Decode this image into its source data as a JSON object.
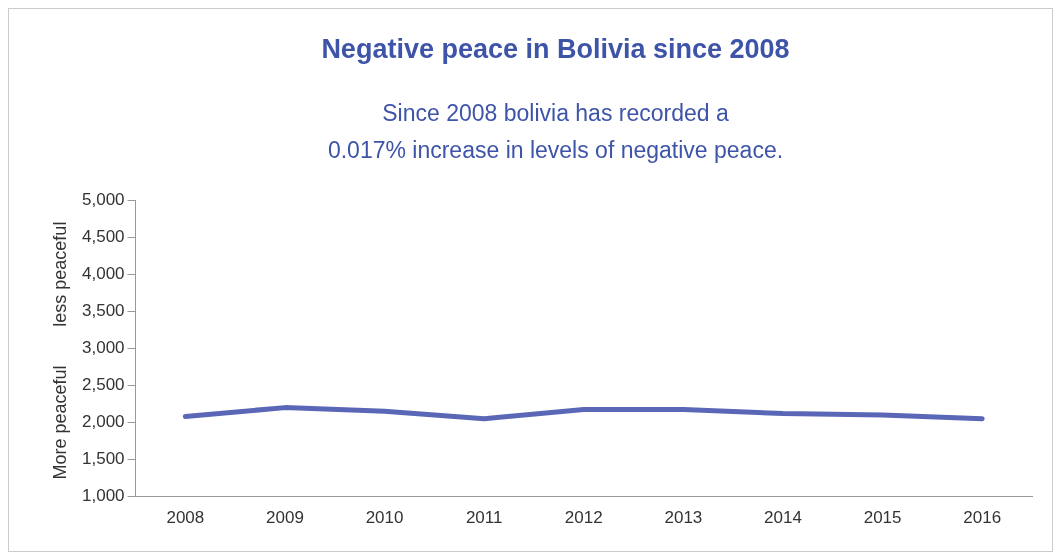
{
  "chart_data": {
    "type": "line",
    "title": "Negative peace in Bolivia since 2008",
    "subtitle": "Since 2008 bolivia has recorded a\n0.017% increase in levels of negative peace.",
    "ylabel": "More peaceful",
    "annotations": [
      "less peaceful"
    ],
    "categories": [
      "2008",
      "2009",
      "2010",
      "2011",
      "2012",
      "2013",
      "2014",
      "2015",
      "2016"
    ],
    "series": [
      {
        "color": "#5a67b6",
        "values": [
          2080,
          2200,
          2150,
          2050,
          2175,
          2175,
          2120,
          2100,
          2050
        ]
      }
    ],
    "ylim": [
      1000,
      5000
    ],
    "yticks": [
      {
        "value": 1000,
        "label": "1,000"
      },
      {
        "value": 1500,
        "label": "1,500"
      },
      {
        "value": 2000,
        "label": "2,000"
      },
      {
        "value": 2500,
        "label": "2,500"
      },
      {
        "value": 3000,
        "label": "3,000"
      },
      {
        "value": 3500,
        "label": "3,500"
      },
      {
        "value": 4000,
        "label": "4,000"
      },
      {
        "value": 4500,
        "label": "4,500"
      },
      {
        "value": 5000,
        "label": "5,000"
      }
    ],
    "grid": false,
    "legend": false,
    "marker": "none",
    "line_style": "solid"
  }
}
